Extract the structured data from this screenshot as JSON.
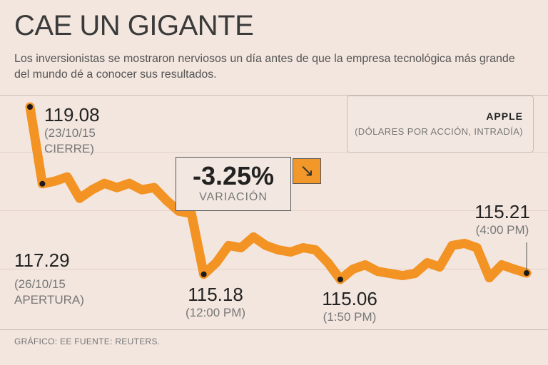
{
  "header": {
    "title": "CAE UN GIGANTE",
    "subtitle": "Los inversionistas se mostraron nerviosos un día antes de que la empresa tecnológica más grande del mundo dé a conocer sus resultados."
  },
  "legend": {
    "company": "APPLE",
    "unit": "(DÓLARES POR ACCIÓN, INTRADÍA)"
  },
  "variation": {
    "value": "-3.25%",
    "label": "VARIACIÓN",
    "arrow_icon": "arrow-down-right-icon"
  },
  "annotations": [
    {
      "value": "119.08",
      "line1": "(23/10/15",
      "line2": "CIERRE)"
    },
    {
      "value": "117.29",
      "line1": "(26/10/15",
      "line2": "APERTURA)"
    },
    {
      "value": "115.18",
      "line1": "(12:00 PM)"
    },
    {
      "value": "115.06",
      "line1": "(1:50 PM)"
    },
    {
      "value": "115.21",
      "line1": "(4:00 PM)"
    }
  ],
  "footer": "GRÁFICO: EE  FUENTE: REUTERS.",
  "colors": {
    "line": "#f29323",
    "marker": "#1a1a1a",
    "background": "#f2e6de"
  },
  "chart_data": {
    "type": "line",
    "title": "CAE UN GIGANTE",
    "xlabel": "",
    "ylabel": "",
    "ylim": [
      114.6,
      119.3
    ],
    "grid": true,
    "series": [
      {
        "name": "APPLE",
        "values": [
          119.08,
          117.29,
          117.35,
          117.45,
          116.95,
          117.15,
          117.3,
          117.2,
          117.3,
          117.15,
          117.2,
          116.9,
          116.65,
          116.6,
          115.18,
          115.45,
          115.85,
          115.8,
          116.05,
          115.85,
          115.75,
          115.7,
          115.8,
          115.75,
          115.45,
          115.06,
          115.3,
          115.4,
          115.25,
          115.2,
          115.15,
          115.2,
          115.45,
          115.35,
          115.85,
          115.9,
          115.8,
          115.1,
          115.4,
          115.3,
          115.21
        ]
      }
    ],
    "highlights": [
      {
        "index": 0,
        "value": 119.08,
        "label": "(23/10/15 CIERRE)"
      },
      {
        "index": 1,
        "value": 117.29,
        "label": "(26/10/15 APERTURA)"
      },
      {
        "index": 14,
        "value": 115.18,
        "label": "(12:00 PM)"
      },
      {
        "index": 25,
        "value": 115.06,
        "label": "(1:50 PM)"
      },
      {
        "index": 40,
        "value": 115.21,
        "label": "(4:00 PM)"
      }
    ]
  }
}
